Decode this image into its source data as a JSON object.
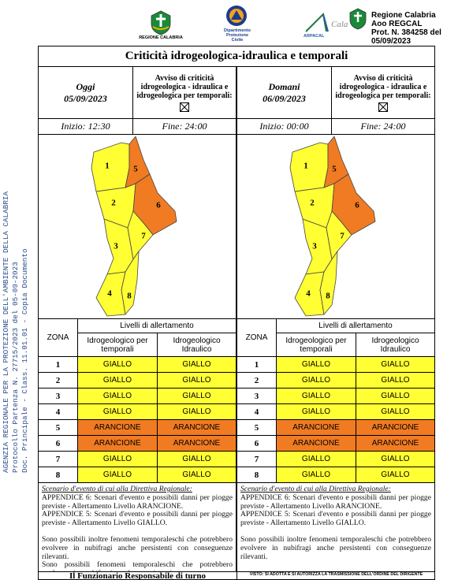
{
  "header": {
    "logos": [
      "REGIONE CALABRIA",
      "Dipartimento Protezione Civile",
      "ARPACAL"
    ],
    "protocol": [
      "Regione Calabria",
      "Aoo REGCAL",
      "Prot. N. 384258 del 05/09/2023"
    ]
  },
  "side_stamp": [
    "AGENZIA REGIONALE PER LA PROTEZIONE DELL'AMBIENTE DELLA CALABRIA",
    "Protocollo Partenza N. 27715/2023 del 05-09-2023",
    "Doc. Principale - Class. 11.01.01 - Copia Documento"
  ],
  "title": "Criticità idrogeologica-idraulica e temporali",
  "level_colors": {
    "GIALLO": "#ffff33",
    "ARANCIONE": "#f07b22"
  },
  "days": [
    {
      "label": "Oggi",
      "date": "05/09/2023",
      "notice": "Avviso di criticità idrogeologica - idraulica e idrogeologica per temporali:",
      "start": "Inizio: 12:30",
      "end": "Fine: 24:00",
      "table": {
        "zone_header": "ZONA",
        "levels_header": "Livelli di allertamento",
        "columns": [
          "Idrogeologico per temporali",
          "Idrogeologico Idraulico"
        ],
        "rows": [
          [
            "1",
            "GIALLO",
            "GIALLO"
          ],
          [
            "2",
            "GIALLO",
            "GIALLO"
          ],
          [
            "3",
            "GIALLO",
            "GIALLO"
          ],
          [
            "4",
            "GIALLO",
            "GIALLO"
          ],
          [
            "5",
            "ARANCIONE",
            "ARANCIONE"
          ],
          [
            "6",
            "ARANCIONE",
            "ARANCIONE"
          ],
          [
            "7",
            "GIALLO",
            "GIALLO"
          ],
          [
            "8",
            "GIALLO",
            "GIALLO"
          ]
        ]
      },
      "notes": {
        "heading": "Scenario d'evento di cui alla Direttiva Regionale:",
        "lines": [
          "APPENDICE 6: Scenari d'evento e possibili danni per piogge previste - Allertamento Livello ARANCIONE.",
          "APPENDICE 5: Scenari d'evento e possibili danni per piogge previste - Allertamento Livello GIALLO.",
          "Sono possibili inoltre fenomeni temporaleschi che potrebbero evolvere in nubifragi anche persistenti con conseguenze rilevanti.",
          "Sono possibili fenomeni temporaleschi che potrebbero evolvere in nubifragi anche persistenti con conseguenze rilevanti."
        ]
      }
    },
    {
      "label": "Domani",
      "date": "06/09/2023",
      "notice": "Avviso di criticità idrogeologica - idraulica e idrogeologica per temporali:",
      "start": "Inizio: 00:00",
      "end": "Fine: 24:00",
      "table": {
        "zone_header": "ZONA",
        "levels_header": "Livelli di allertamento",
        "columns": [
          "Idrogeologico per temporali",
          "Idrogeologico Idraulico"
        ],
        "rows": [
          [
            "1",
            "GIALLO",
            "GIALLO"
          ],
          [
            "2",
            "GIALLO",
            "GIALLO"
          ],
          [
            "3",
            "GIALLO",
            "GIALLO"
          ],
          [
            "4",
            "GIALLO",
            "GIALLO"
          ],
          [
            "5",
            "ARANCIONE",
            "ARANCIONE"
          ],
          [
            "6",
            "ARANCIONE",
            "ARANCIONE"
          ],
          [
            "7",
            "GIALLO",
            "GIALLO"
          ],
          [
            "8",
            "GIALLO",
            "GIALLO"
          ]
        ]
      },
      "notes": {
        "heading": "Scenario d'evento di cui alla Direttiva Regionale:",
        "lines": [
          "APPENDICE 6: Scenari d'evento e possibili danni per piogge previste - Allertamento Livello ARANCIONE.",
          "APPENDICE 5: Scenari d'evento e possibili danni per piogge previste - Allertamento Livello GIALLO.",
          "Sono possibili inoltre fenomeni temporaleschi che potrebbero evolvere in nubifragi anche persistenti con conseguenze rilevanti."
        ]
      }
    }
  ],
  "footer": [
    "Il Funzionario Responsabile di turno",
    "VISTO: SI ADOTTA E SI AUTORIZZA LA TRASMISSIONE DELL'ORDINE DEL DIRIGENTE"
  ]
}
